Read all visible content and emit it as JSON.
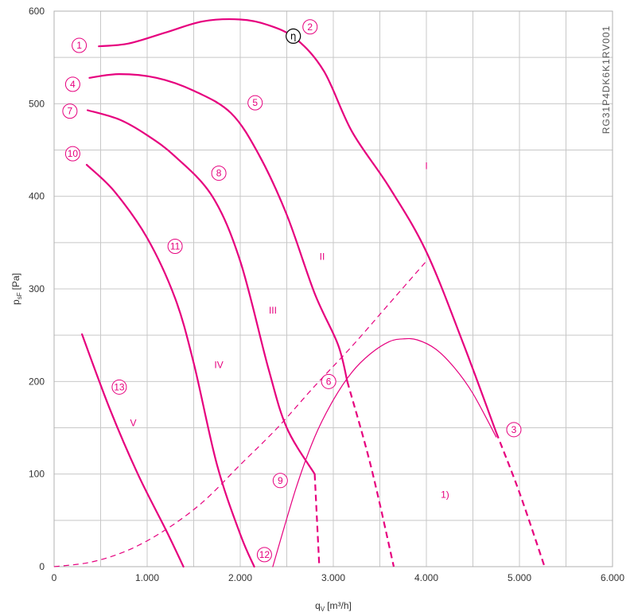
{
  "chart_data": {
    "type": "line",
    "title": "",
    "watermark": "RG31P4DK6K1RV001",
    "xlabel": {
      "main": "q",
      "sub": "V",
      "unit": "[m³/h]"
    },
    "ylabel": {
      "main": "p",
      "sub": "sF",
      "unit": "[Pa]"
    },
    "xlim": [
      0,
      6000
    ],
    "ylim": [
      0,
      600
    ],
    "x_ticks": [
      0,
      1000,
      2000,
      3000,
      4000,
      5000,
      6000
    ],
    "x_tick_labels": [
      "0",
      "1.000",
      "2.000",
      "3.000",
      "4.000",
      "5.000",
      "6.000"
    ],
    "y_ticks": [
      0,
      100,
      200,
      300,
      400,
      500,
      600
    ],
    "y_tick_labels": [
      "0",
      "100",
      "200",
      "300",
      "400",
      "500",
      "600"
    ],
    "grid": true,
    "color": "#e6007e",
    "series": [
      {
        "name": "I",
        "style": "solid",
        "width": 2.2,
        "x": [
          480,
          800,
          1200,
          1600,
          2000,
          2300,
          2600,
          2900,
          3200,
          3600,
          4000,
          4400,
          4750
        ],
        "y": [
          562,
          565,
          577,
          589,
          591,
          585,
          570,
          535,
          470,
          410,
          340,
          240,
          145
        ]
      },
      {
        "name": "I-ext",
        "style": "dashed",
        "width": 2.2,
        "x": [
          4750,
          5000,
          5270
        ],
        "y": [
          145,
          80,
          0
        ]
      },
      {
        "name": "II",
        "style": "solid",
        "width": 2.2,
        "x": [
          380,
          700,
          1100,
          1500,
          1900,
          2200,
          2500,
          2800,
          3050,
          3150
        ],
        "y": [
          528,
          532,
          528,
          514,
          490,
          445,
          380,
          295,
          240,
          200
        ]
      },
      {
        "name": "II-ext",
        "style": "dashed",
        "width": 2.2,
        "x": [
          3150,
          3400,
          3650
        ],
        "y": [
          200,
          110,
          0
        ]
      },
      {
        "name": "III",
        "style": "solid",
        "width": 2.2,
        "x": [
          360,
          700,
          1000,
          1300,
          1700,
          2000,
          2300,
          2500,
          2800
        ],
        "y": [
          493,
          483,
          466,
          443,
          400,
          330,
          215,
          150,
          100
        ]
      },
      {
        "name": "III-ext",
        "style": "dashed",
        "width": 2.2,
        "x": [
          2800,
          2850
        ],
        "y": [
          100,
          0
        ]
      },
      {
        "name": "IV",
        "style": "solid",
        "width": 2.2,
        "x": [
          350,
          650,
          1000,
          1300,
          1500,
          1750,
          2000,
          2150
        ],
        "y": [
          434,
          405,
          355,
          290,
          220,
          110,
          35,
          0
        ]
      },
      {
        "name": "V",
        "style": "solid",
        "width": 2.2,
        "x": [
          300,
          600,
          900,
          1200,
          1390
        ],
        "y": [
          251,
          170,
          100,
          40,
          0
        ]
      },
      {
        "name": "system",
        "style": "dashed",
        "width": 1.2,
        "x": [
          0,
          400,
          800,
          1200,
          1600,
          2000,
          2400,
          2800,
          3200,
          3600,
          4000
        ],
        "y": [
          0,
          5,
          18,
          40,
          70,
          110,
          150,
          195,
          238,
          284,
          330
        ]
      },
      {
        "name": "1)",
        "style": "solid",
        "width": 1.2,
        "x": [
          2350,
          2600,
          2800,
          3000,
          3200,
          3400,
          3600,
          3750,
          3900,
          4100,
          4300,
          4500,
          4750
        ],
        "y": [
          0,
          85,
          140,
          180,
          210,
          230,
          243,
          246,
          245,
          235,
          215,
          187,
          140
        ]
      }
    ],
    "point_labels": [
      {
        "text": "1",
        "x": 270,
        "y": 563
      },
      {
        "text": "2",
        "x": 2750,
        "y": 583
      },
      {
        "text": "3",
        "x": 4940,
        "y": 148
      },
      {
        "text": "4",
        "x": 200,
        "y": 521
      },
      {
        "text": "5",
        "x": 2160,
        "y": 501
      },
      {
        "text": "6",
        "x": 2950,
        "y": 200
      },
      {
        "text": "7",
        "x": 170,
        "y": 492
      },
      {
        "text": "8",
        "x": 1770,
        "y": 425
      },
      {
        "text": "9",
        "x": 2430,
        "y": 93
      },
      {
        "text": "10",
        "x": 200,
        "y": 446
      },
      {
        "text": "11",
        "x": 1300,
        "y": 346
      },
      {
        "text": "12",
        "x": 2260,
        "y": 13
      },
      {
        "text": "13",
        "x": 700,
        "y": 194
      }
    ],
    "efficiency_marker": {
      "text": "η",
      "x": 2570,
      "y": 573
    },
    "curve_labels": [
      {
        "text": "I",
        "x": 4000,
        "y": 433
      },
      {
        "text": "II",
        "x": 2880,
        "y": 335
      },
      {
        "text": "III",
        "x": 2350,
        "y": 277
      },
      {
        "text": "IV",
        "x": 1770,
        "y": 218
      },
      {
        "text": "V",
        "x": 850,
        "y": 155
      },
      {
        "text": "1)",
        "x": 4200,
        "y": 78
      }
    ]
  }
}
